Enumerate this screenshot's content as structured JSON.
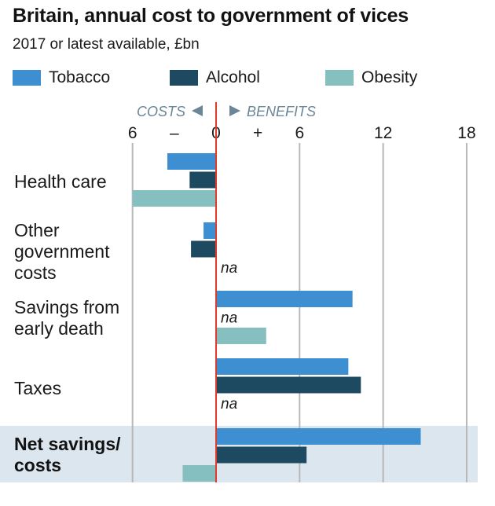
{
  "header": {
    "title": "Britain, annual cost to government of vices",
    "subtitle": "2017 or latest available, £bn"
  },
  "legend": [
    {
      "label": "Tobacco",
      "color": "#3d8fd1"
    },
    {
      "label": "Alcohol",
      "color": "#1e4a61"
    },
    {
      "label": "Obesity",
      "color": "#86bfbf"
    }
  ],
  "chart_data": {
    "type": "bar",
    "orientation": "horizontal",
    "direction_labels": {
      "costs": "COSTS",
      "benefits": "BENEFITS"
    },
    "xlim": [
      -6,
      18
    ],
    "ticks": [
      {
        "value": -6,
        "label": "6"
      },
      {
        "value": -3,
        "label": "–"
      },
      {
        "value": 0,
        "label": "0"
      },
      {
        "value": 3,
        "label": "+"
      },
      {
        "value": 6,
        "label": "6"
      },
      {
        "value": 12,
        "label": "12"
      },
      {
        "value": 18,
        "label": "18"
      }
    ],
    "gridlines": [
      -6,
      6,
      12,
      18
    ],
    "categories": [
      {
        "label": "Health care",
        "highlight": false
      },
      {
        "label": "Other government costs",
        "highlight": false
      },
      {
        "label": "Savings from early death",
        "highlight": false
      },
      {
        "label": "Taxes",
        "highlight": false
      },
      {
        "label": "Net savings/ costs",
        "highlight": true
      }
    ],
    "series": [
      {
        "name": "Tobacco",
        "color": "#3d8fd1",
        "values": [
          -3.5,
          -0.9,
          9.8,
          9.5,
          14.7
        ]
      },
      {
        "name": "Alcohol",
        "color": "#1e4a61",
        "values": [
          -1.9,
          -1.8,
          null,
          10.4,
          6.5
        ]
      },
      {
        "name": "Obesity",
        "color": "#86bfbf",
        "values": [
          -6.0,
          null,
          3.6,
          null,
          -2.4
        ]
      }
    ],
    "na_text": "na",
    "highlight_color": "#dce6ee",
    "zero_line_color": "#e03a2b",
    "grid_color": "#b8b8b8"
  }
}
